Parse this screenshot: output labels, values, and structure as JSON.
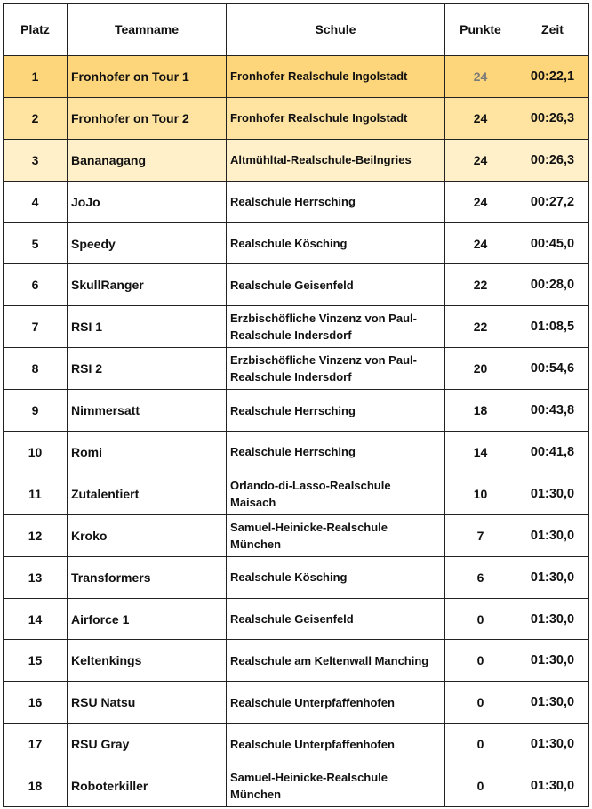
{
  "table": {
    "headers": [
      "Platz",
      "Teamname",
      "Schule",
      "Punkte",
      "Zeit"
    ],
    "rows": [
      [
        "1",
        "Fronhofer on Tour 1",
        "Fronhofer Realschule Ingolstadt",
        "24",
        "00:22,1"
      ],
      [
        "2",
        "Fronhofer on Tour 2",
        "Fronhofer Realschule Ingolstadt",
        "24",
        "00:26,3"
      ],
      [
        "3",
        "Bananagang",
        "Altmühltal-Realschule-Beilngries",
        "24",
        "00:26,3"
      ],
      [
        "4",
        "JoJo",
        "Realschule Herrsching",
        "24",
        "00:27,2"
      ],
      [
        "5",
        "Speedy",
        "Realschule Kösching",
        "24",
        "00:45,0"
      ],
      [
        "6",
        "SkullRanger",
        "Realschule Geisenfeld",
        "22",
        "00:28,0"
      ],
      [
        "7",
        "RSI 1",
        "Erzbischöfliche Vinzenz von Paul-Realschule Indersdorf",
        "22",
        "01:08,5"
      ],
      [
        "8",
        "RSI 2",
        "Erzbischöfliche Vinzenz von Paul-Realschule Indersdorf",
        "20",
        "00:54,6"
      ],
      [
        "9",
        "Nimmersatt",
        "Realschule Herrsching",
        "18",
        "00:43,8"
      ],
      [
        "10",
        "Romi",
        "Realschule Herrsching",
        "14",
        "00:41,8"
      ],
      [
        "11",
        "Zutalentiert",
        "Orlando-di-Lasso-Realschule Maisach",
        "10",
        "01:30,0"
      ],
      [
        "12",
        "Kroko",
        "Samuel-Heinicke-Realschule München",
        "7",
        "01:30,0"
      ],
      [
        "13",
        "Transformers",
        "Realschule Kösching",
        "6",
        "01:30,0"
      ],
      [
        "14",
        "Airforce 1",
        "Realschule Geisenfeld",
        "0",
        "01:30,0"
      ],
      [
        "15",
        "Keltenkings",
        "Realschule am Keltenwall Manching",
        "0",
        "01:30,0"
      ],
      [
        "16",
        "RSU Natsu",
        "Realschule Unterpfaffenhofen",
        "0",
        "01:30,0"
      ],
      [
        "17",
        "RSU Gray",
        "Realschule Unterpfaffenhofen",
        "0",
        "01:30,0"
      ],
      [
        "18",
        "Roboterkiller",
        "Samuel-Heinicke-Realschule München",
        "0",
        "01:30,0"
      ]
    ]
  }
}
